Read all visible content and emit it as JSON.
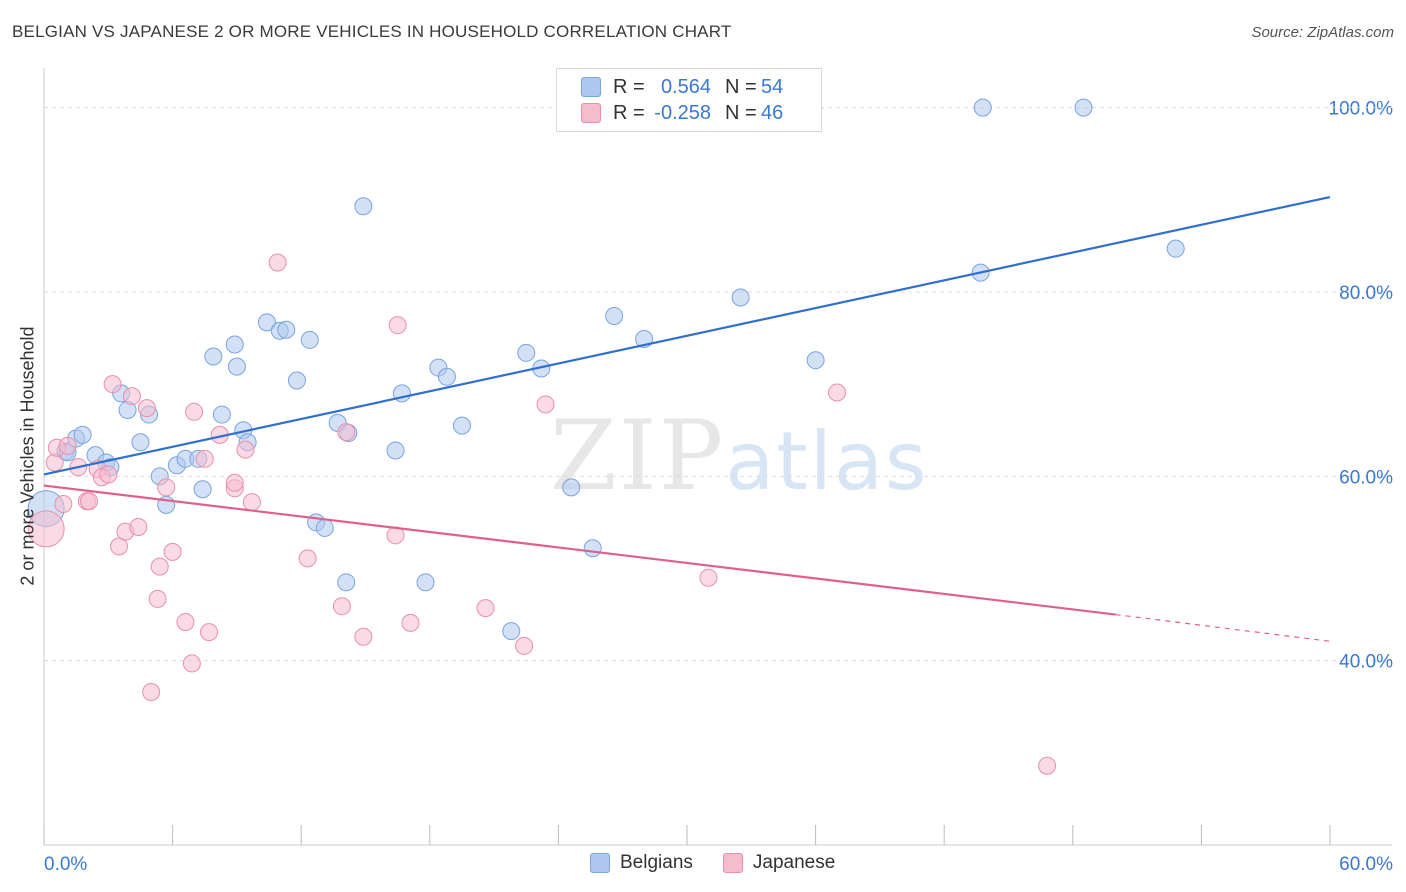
{
  "title": "BELGIAN VS JAPANESE 2 OR MORE VEHICLES IN HOUSEHOLD CORRELATION CHART",
  "source": "Source: ZipAtlas.com",
  "watermark": {
    "zip": "ZIP",
    "atlas": "atlas"
  },
  "legend": {
    "rows": [
      {
        "r_label": "R =",
        "r_value": "0.564",
        "n_label": "N =",
        "n_value": "54"
      },
      {
        "r_label": "R =",
        "r_value": "-0.258",
        "n_label": "N =",
        "n_value": "46"
      }
    ]
  },
  "bottom_legend": {
    "belgians": "Belgians",
    "japanese": "Japanese"
  },
  "colors": {
    "belgians_fill": "#aec8f0",
    "belgians_stroke": "#7aa3e0",
    "belgians_line": "#2f6fcf",
    "japanese_fill": "#f5bccd",
    "japanese_stroke": "#e890ab",
    "japanese_line": "#e0608c",
    "axis_label": "#3a78d4",
    "grid": "#dddddd"
  },
  "chart_data": {
    "type": "scatter",
    "title": "BELGIAN VS JAPANESE 2 OR MORE VEHICLES IN HOUSEHOLD CORRELATION CHART",
    "xlabel": "",
    "ylabel": "2 or more Vehicles in Household",
    "xlim": [
      0,
      60
    ],
    "ylim": [
      20,
      103
    ],
    "x_tick_labels": [
      "0.0%",
      "60.0%"
    ],
    "y_ticks": [
      40,
      60,
      80,
      100
    ],
    "y_tick_labels": [
      "40.0%",
      "60.0%",
      "80.0%",
      "100.0%"
    ],
    "grid": true,
    "legend_position": "top-center",
    "series": [
      {
        "name": "Belgians",
        "r": 0.564,
        "n": 54,
        "trend": {
          "x0": 0,
          "y0": 60.2,
          "x1": 60,
          "y1": 90.3
        },
        "points": [
          [
            0.1,
            56.5
          ],
          [
            1.0,
            62.7
          ],
          [
            1.1,
            62.6
          ],
          [
            1.5,
            64.1
          ],
          [
            1.8,
            64.5
          ],
          [
            2.4,
            62.3
          ],
          [
            2.9,
            61.5
          ],
          [
            3.1,
            61.0
          ],
          [
            3.6,
            69.0
          ],
          [
            3.9,
            67.2
          ],
          [
            4.5,
            63.7
          ],
          [
            4.9,
            66.7
          ],
          [
            5.4,
            60.0
          ],
          [
            5.7,
            56.9
          ],
          [
            6.2,
            61.2
          ],
          [
            6.6,
            61.9
          ],
          [
            7.2,
            61.9
          ],
          [
            7.4,
            58.6
          ],
          [
            7.9,
            73.0
          ],
          [
            8.3,
            66.7
          ],
          [
            8.9,
            74.3
          ],
          [
            9.0,
            71.9
          ],
          [
            9.3,
            65.0
          ],
          [
            9.5,
            63.7
          ],
          [
            10.4,
            76.7
          ],
          [
            11.0,
            75.8
          ],
          [
            11.3,
            75.9
          ],
          [
            11.8,
            70.4
          ],
          [
            12.4,
            74.8
          ],
          [
            12.7,
            55.0
          ],
          [
            13.1,
            54.4
          ],
          [
            13.7,
            65.8
          ],
          [
            14.2,
            64.7
          ],
          [
            14.1,
            48.5
          ],
          [
            14.9,
            89.3
          ],
          [
            16.4,
            62.8
          ],
          [
            16.7,
            69.0
          ],
          [
            17.8,
            48.5
          ],
          [
            18.4,
            71.8
          ],
          [
            18.8,
            70.8
          ],
          [
            19.5,
            65.5
          ],
          [
            21.8,
            43.2
          ],
          [
            22.5,
            73.4
          ],
          [
            23.2,
            71.7
          ],
          [
            24.6,
            58.8
          ],
          [
            25.6,
            52.2
          ],
          [
            26.6,
            77.4
          ],
          [
            28.0,
            74.9
          ],
          [
            32.5,
            79.4
          ],
          [
            36.0,
            72.6
          ],
          [
            43.7,
            82.1
          ],
          [
            43.8,
            100.0
          ],
          [
            48.5,
            100.0
          ],
          [
            52.8,
            84.7
          ]
        ]
      },
      {
        "name": "Japanese",
        "r": -0.258,
        "n": 46,
        "trend": {
          "x0": 0,
          "y0": 59.0,
          "x1": 50.0,
          "y1": 45.0,
          "dash_to_x": 60,
          "dash_to_y": 42.1
        },
        "points": [
          [
            0.1,
            54.3
          ],
          [
            0.5,
            61.5
          ],
          [
            0.6,
            63.1
          ],
          [
            0.9,
            57.0
          ],
          [
            1.1,
            63.3
          ],
          [
            1.6,
            61.0
          ],
          [
            2.0,
            57.3
          ],
          [
            2.1,
            57.3
          ],
          [
            2.5,
            60.8
          ],
          [
            2.7,
            59.9
          ],
          [
            3.0,
            60.2
          ],
          [
            3.2,
            70.0
          ],
          [
            3.5,
            52.4
          ],
          [
            3.8,
            54.0
          ],
          [
            4.1,
            68.7
          ],
          [
            4.4,
            54.5
          ],
          [
            4.8,
            67.4
          ],
          [
            5.0,
            36.6
          ],
          [
            5.3,
            46.7
          ],
          [
            5.4,
            50.2
          ],
          [
            5.7,
            58.8
          ],
          [
            6.0,
            51.8
          ],
          [
            6.6,
            44.2
          ],
          [
            6.9,
            39.7
          ],
          [
            7.0,
            67.0
          ],
          [
            7.5,
            61.9
          ],
          [
            7.7,
            43.1
          ],
          [
            8.2,
            64.5
          ],
          [
            8.9,
            58.7
          ],
          [
            8.9,
            59.3
          ],
          [
            9.4,
            62.9
          ],
          [
            9.7,
            57.2
          ],
          [
            10.9,
            83.2
          ],
          [
            12.3,
            51.1
          ],
          [
            13.9,
            45.9
          ],
          [
            14.1,
            64.8
          ],
          [
            14.9,
            42.6
          ],
          [
            16.4,
            53.6
          ],
          [
            16.5,
            76.4
          ],
          [
            17.1,
            44.1
          ],
          [
            20.6,
            45.7
          ],
          [
            22.4,
            41.6
          ],
          [
            23.4,
            67.8
          ],
          [
            31.0,
            49.0
          ],
          [
            37.0,
            69.1
          ],
          [
            46.8,
            28.6
          ]
        ]
      }
    ]
  }
}
